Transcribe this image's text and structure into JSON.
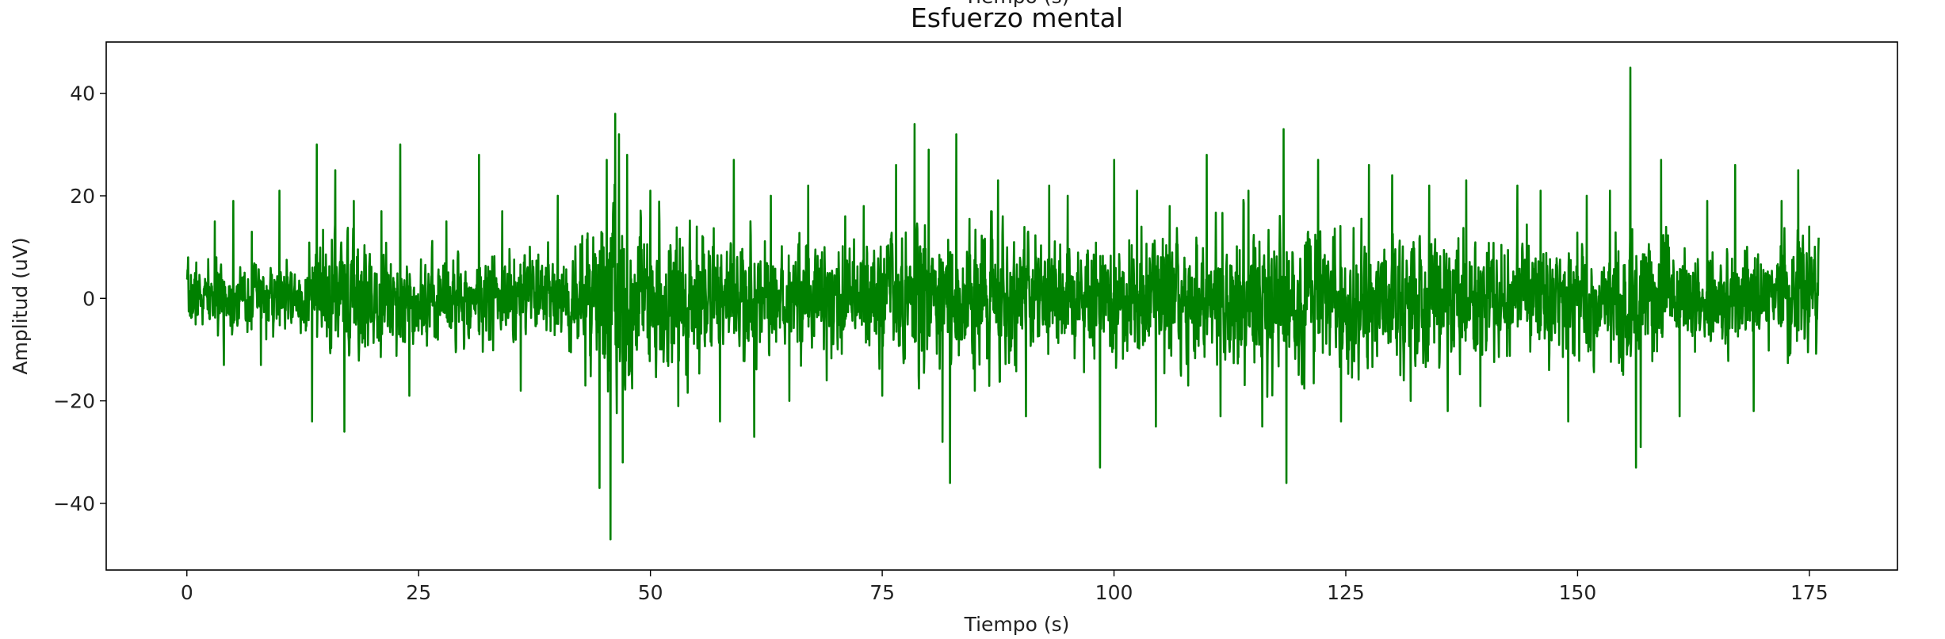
{
  "top_clipped_label": "Tiempo (s)",
  "chart_data": {
    "type": "line",
    "title": "Esfuerzo mental",
    "xlabel": "Tiempo (s)",
    "ylabel": "Amplitud (uV)",
    "xlim": [
      -8.7,
      184.5
    ],
    "ylim": [
      -53,
      50
    ],
    "xticks": [
      0,
      25,
      50,
      75,
      100,
      125,
      150,
      175
    ],
    "xtick_labels": [
      "0",
      "25",
      "50",
      "75",
      "100",
      "125",
      "150",
      "175"
    ],
    "yticks": [
      -40,
      -20,
      0,
      20,
      40
    ],
    "ytick_labels": [
      "−40",
      "−20",
      "0",
      "20",
      "40"
    ],
    "grid": false,
    "series": [
      {
        "color": "#008000",
        "x_range": [
          0,
          176
        ],
        "envelope_breakpoints_x": [
          0,
          12,
          14,
          18,
          22,
          42,
          44,
          46,
          47,
          48,
          52,
          56,
          58,
          62,
          64,
          74,
          76,
          86,
          90,
          102,
          104,
          110,
          112,
          118,
          120,
          124,
          126,
          140,
          142,
          154,
          156,
          158,
          170,
          172,
          176
        ],
        "envelope_breakpoints_amp": [
          5,
          5,
          8,
          10,
          7,
          7,
          12,
          16,
          18,
          14,
          11,
          12,
          8,
          10,
          8,
          9,
          11,
          11,
          9,
          9,
          10,
          10,
          12,
          12,
          11,
          11,
          10,
          10,
          9,
          9,
          10,
          9,
          7,
          9,
          9
        ],
        "spikes_x": [
          1,
          3,
          4,
          5,
          7,
          8,
          10,
          13.5,
          14,
          16,
          17,
          18,
          21,
          23,
          24,
          28,
          31.5,
          34,
          36,
          40,
          43,
          44.5,
          45.3,
          45.7,
          46.2,
          46.6,
          47,
          47.5,
          50,
          53,
          55,
          57.5,
          59,
          61.2,
          63,
          65,
          67,
          69,
          71,
          73,
          75,
          76.5,
          78.5,
          80,
          81.5,
          82.3,
          83,
          85,
          87.5,
          90.5,
          93,
          95,
          98.5,
          100,
          102.5,
          104.5,
          106,
          108,
          110,
          111.5,
          114.5,
          116,
          118.3,
          118.6,
          122,
          124.5,
          127.5,
          130,
          132,
          134,
          136,
          138,
          139.5,
          143.5,
          146,
          149,
          151,
          153.5,
          155.7,
          156.3,
          156.8,
          159,
          161,
          164,
          167,
          169,
          172,
          173.8,
          175
        ],
        "spikes_y": [
          7,
          15,
          -13,
          19,
          13,
          -13,
          21,
          -24,
          30,
          25,
          -26,
          19,
          17,
          30,
          -19,
          15,
          28,
          17,
          -18,
          20,
          -17,
          -37,
          27,
          -47,
          36,
          32,
          -32,
          28,
          21,
          -21,
          14,
          -24,
          27,
          -27,
          20,
          -20,
          22,
          -16,
          16,
          18,
          -19,
          26,
          34,
          29,
          -28,
          -36,
          32,
          -18,
          23,
          -23,
          22,
          20,
          -33,
          27,
          21,
          -25,
          18,
          -17,
          28,
          -23,
          21,
          -25,
          33,
          -36,
          27,
          -24,
          26,
          24,
          -20,
          22,
          -22,
          23,
          -21,
          22,
          21,
          -24,
          20,
          21,
          45,
          -33,
          -29,
          27,
          -23,
          19,
          26,
          -22,
          19,
          25,
          14
        ],
        "seed": 7
      }
    ]
  }
}
